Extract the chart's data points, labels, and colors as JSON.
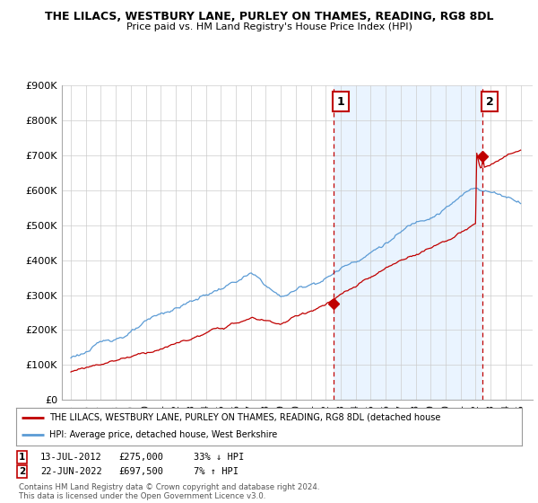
{
  "title_line1": "THE LILACS, WESTBURY LANE, PURLEY ON THAMES, READING, RG8 8DL",
  "title_line2": "Price paid vs. HM Land Registry's House Price Index (HPI)",
  "ylim": [
    0,
    900000
  ],
  "yticks": [
    0,
    100000,
    200000,
    300000,
    400000,
    500000,
    600000,
    700000,
    800000,
    900000
  ],
  "ytick_labels": [
    "£0",
    "£100K",
    "£200K",
    "£300K",
    "£400K",
    "£500K",
    "£600K",
    "£700K",
    "£800K",
    "£900K"
  ],
  "hpi_color": "#5b9bd5",
  "price_color": "#c00000",
  "shade_color": "#ddeeff",
  "annotation1_label": "1",
  "annotation2_label": "2",
  "annotation1_date": "13-JUL-2012",
  "annotation1_price": "£275,000",
  "annotation1_hpi": "33% ↓ HPI",
  "annotation2_date": "22-JUN-2022",
  "annotation2_price": "£697,500",
  "annotation2_hpi": "7% ↑ HPI",
  "legend_label1": "THE LILACS, WESTBURY LANE, PURLEY ON THAMES, READING, RG8 8DL (detached house",
  "legend_label2": "HPI: Average price, detached house, West Berkshire",
  "footer1": "Contains HM Land Registry data © Crown copyright and database right 2024.",
  "footer2": "This data is licensed under the Open Government Licence v3.0.",
  "background_color": "#ffffff",
  "grid_color": "#cccccc",
  "vline_color": "#c00000",
  "sale1_year": 2012.54,
  "sale1_price": 275000,
  "sale2_year": 2022.47,
  "sale2_price": 697500,
  "xmin": 1995,
  "xmax": 2025
}
